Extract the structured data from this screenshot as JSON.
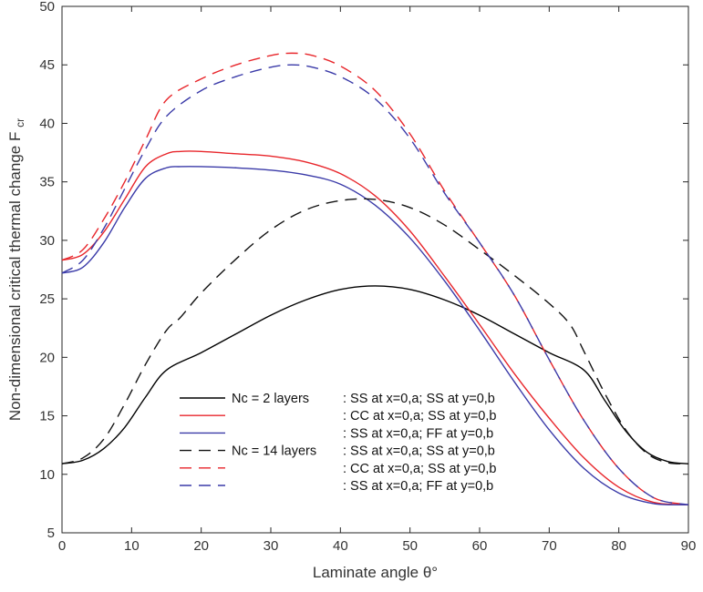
{
  "chart_data": {
    "type": "line",
    "xlabel": "Laminate angle θ°",
    "ylabel": "Non-dimensional critical thermal change F",
    "ylabel_subscript": "cr",
    "xlim": [
      0,
      90
    ],
    "ylim": [
      5,
      50
    ],
    "xticks": [
      0,
      10,
      20,
      30,
      40,
      50,
      60,
      70,
      80,
      90
    ],
    "yticks": [
      5,
      10,
      15,
      20,
      25,
      30,
      35,
      40,
      45,
      50
    ],
    "grid": false,
    "legend_placement": "lower-left",
    "series": [
      {
        "name": "Nc = 2 layers : SS at x=0,a; SS at y=0,b",
        "legend_left": "Nc = 2 layers",
        "legend_right": ": SS at x=0,a; SS at y=0,b",
        "color": "#000000",
        "dash": "solid",
        "x": [
          0,
          3,
          6,
          9,
          12,
          15,
          20,
          25,
          30,
          35,
          40,
          45,
          50,
          55,
          60,
          65,
          70,
          75,
          78,
          81,
          84,
          87,
          90
        ],
        "y": [
          10.9,
          11.2,
          12.2,
          14.0,
          16.6,
          18.9,
          20.4,
          22.0,
          23.6,
          24.9,
          25.8,
          26.1,
          25.8,
          24.9,
          23.6,
          22.0,
          20.4,
          18.9,
          16.3,
          13.7,
          11.9,
          11.1,
          10.9
        ]
      },
      {
        "name": ": CC at x=0,a; SS at y=0,b",
        "legend_left": "",
        "legend_right": ": CC at x=0,a; SS at y=0,b",
        "color": "#e8262b",
        "dash": "solid",
        "x": [
          0,
          3,
          6,
          9,
          12,
          15,
          17,
          20,
          25,
          30,
          35,
          40,
          45,
          50,
          55,
          60,
          65,
          70,
          75,
          80,
          85,
          90
        ],
        "y": [
          28.3,
          28.8,
          30.7,
          33.5,
          36.3,
          37.4,
          37.6,
          37.6,
          37.4,
          37.2,
          36.7,
          35.7,
          33.8,
          30.8,
          26.9,
          22.8,
          18.6,
          14.8,
          11.4,
          8.9,
          7.6,
          7.4
        ]
      },
      {
        "name": ": SS at x=0,a; FF at y=0,b",
        "legend_left": "",
        "legend_right": ": SS at x=0,a; FF at y=0,b",
        "color": "#3a3aa8",
        "dash": "solid",
        "x": [
          0,
          3,
          6,
          9,
          12,
          15,
          17,
          20,
          25,
          30,
          35,
          40,
          45,
          50,
          55,
          60,
          65,
          70,
          75,
          80,
          85,
          90
        ],
        "y": [
          27.2,
          27.7,
          29.8,
          32.8,
          35.3,
          36.2,
          36.3,
          36.3,
          36.2,
          36.0,
          35.6,
          34.8,
          33.0,
          30.2,
          26.5,
          22.3,
          17.9,
          13.8,
          10.5,
          8.4,
          7.5,
          7.4
        ]
      },
      {
        "name": "Nc = 14 layers : SS at x=0,a; SS at y=0,b",
        "legend_left": "Nc = 14 layers",
        "legend_right": ": SS at x=0,a; SS at y=0,b",
        "color": "#111111",
        "dash": "dashed",
        "x": [
          0,
          3,
          6,
          9,
          12,
          15,
          17,
          20,
          25,
          30,
          35,
          40,
          45,
          50,
          55,
          60,
          65,
          70,
          73,
          75,
          78,
          81,
          84,
          87,
          90
        ],
        "y": [
          10.9,
          11.4,
          13.0,
          16.0,
          19.4,
          22.3,
          23.4,
          25.5,
          28.4,
          30.9,
          32.6,
          33.4,
          33.5,
          32.8,
          31.3,
          29.2,
          27.0,
          24.6,
          22.8,
          20.5,
          16.9,
          13.8,
          11.8,
          11.0,
          10.9
        ]
      },
      {
        "name": ": CC at x=0,a; SS at y=0,b",
        "legend_left": "",
        "legend_right": ": CC at x=0,a; SS at y=0,b",
        "color": "#e8262b",
        "dash": "dashed",
        "x": [
          0,
          3,
          6,
          9,
          12,
          15,
          20,
          25,
          30,
          33,
          36,
          40,
          45,
          50,
          55,
          60,
          65,
          70,
          75,
          80,
          85,
          90
        ],
        "y": [
          28.3,
          29.2,
          31.8,
          35.0,
          38.6,
          42.0,
          43.8,
          45.0,
          45.8,
          46.0,
          45.8,
          44.9,
          42.8,
          39.1,
          34.2,
          29.8,
          25.3,
          19.8,
          14.6,
          10.5,
          8.0,
          7.4
        ]
      },
      {
        "name": ": SS at x=0,a; FF at y=0,b",
        "legend_left": "",
        "legend_right": ": SS at x=0,a; FF at y=0,b",
        "color": "#3a3aa8",
        "dash": "dashed",
        "x": [
          0,
          3,
          6,
          9,
          12,
          15,
          20,
          25,
          30,
          33,
          36,
          40,
          45,
          50,
          55,
          60,
          65,
          70,
          75,
          80,
          85,
          90
        ],
        "y": [
          27.2,
          28.3,
          31.0,
          34.4,
          37.8,
          40.6,
          42.8,
          44.0,
          44.8,
          45.0,
          44.8,
          44.0,
          42.1,
          38.7,
          34.0,
          29.8,
          25.3,
          19.8,
          14.6,
          10.5,
          8.0,
          7.4
        ]
      }
    ]
  }
}
